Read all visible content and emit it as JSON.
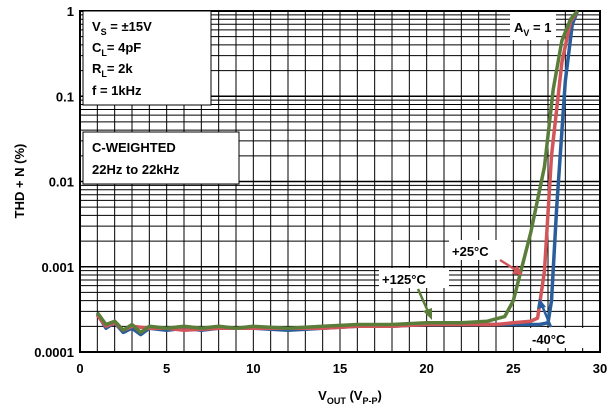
{
  "chart_data": {
    "type": "line",
    "xlabel": {
      "main": "V",
      "sub1": "OUT",
      "mid": " (V",
      "sub2": "P-P",
      "end": ")"
    },
    "ylabel": "THD + N (%)",
    "xlim": [
      0,
      30
    ],
    "ylim": [
      0.0001,
      1
    ],
    "y_scale": "log",
    "x_ticks": [
      {
        "v": 0,
        "label": "0"
      },
      {
        "v": 5,
        "label": "5"
      },
      {
        "v": 10,
        "label": "10"
      },
      {
        "v": 15,
        "label": "15"
      },
      {
        "v": 20,
        "label": "20"
      },
      {
        "v": 25,
        "label": "25"
      },
      {
        "v": 30,
        "label": "30"
      }
    ],
    "y_ticks": [
      {
        "v": 1,
        "label": "1"
      },
      {
        "v": 0.1,
        "label": "0.1"
      },
      {
        "v": 0.01,
        "label": "0.01"
      },
      {
        "v": 0.001,
        "label": "0.001"
      },
      {
        "v": 0.0001,
        "label": "0.0001"
      }
    ],
    "grid": true,
    "conditions": {
      "vs": {
        "main": "V",
        "sub": "S",
        "rest": " = ±15V"
      },
      "cl": {
        "main": "C",
        "sub": "L",
        "rest": "= 4pF"
      },
      "rl": {
        "main": "R",
        "sub": "L",
        "rest": "= 2k"
      },
      "f": "f = 1kHz"
    },
    "weighting": {
      "line1": "C-WEIGHTED",
      "line2": "22Hz to 22kHz"
    },
    "gain": {
      "main": "A",
      "sub": "V",
      "rest": " = 1"
    },
    "series": [
      {
        "name": "-40°C",
        "color": "#2a5d9c",
        "x": [
          1.0,
          1.5,
          2.0,
          2.5,
          3.0,
          3.5,
          4.0,
          5.0,
          6.0,
          7.0,
          8.0,
          10.0,
          12.0,
          14.0,
          16.0,
          18.0,
          20.0,
          22.0,
          24.0,
          25.5,
          26.5,
          27.0,
          27.2,
          27.5,
          28.0,
          28.4,
          28.7
        ],
        "y": [
          0.00028,
          0.00019,
          0.00022,
          0.00017,
          0.00019,
          0.00016,
          0.00019,
          0.00018,
          0.00019,
          0.00018,
          0.00019,
          0.00019,
          0.00018,
          0.00019,
          0.0002,
          0.0002,
          0.00021,
          0.00021,
          0.00021,
          0.00021,
          0.00021,
          0.00022,
          0.0004,
          0.005,
          0.15,
          0.7,
          1.0
        ]
      },
      {
        "name": "+25°C",
        "color": "#d2555a",
        "x": [
          1.0,
          1.5,
          2.0,
          2.5,
          3.0,
          4.0,
          5.0,
          6.0,
          8.0,
          10.0,
          12.0,
          14.0,
          16.0,
          18.0,
          20.0,
          22.0,
          24.0,
          25.0,
          26.0,
          26.4,
          26.8,
          27.2,
          27.8,
          28.3,
          28.7
        ],
        "y": [
          0.00027,
          0.0002,
          0.00022,
          0.00018,
          0.0002,
          0.00019,
          0.00019,
          0.00018,
          0.00019,
          0.00019,
          0.00019,
          0.00019,
          0.0002,
          0.0002,
          0.00021,
          0.00021,
          0.00021,
          0.00022,
          0.00023,
          0.00025,
          0.0009,
          0.02,
          0.25,
          0.75,
          1.0
        ]
      },
      {
        "name": "+125°C",
        "color": "#5a7d3a",
        "x": [
          1.0,
          1.5,
          2.0,
          2.5,
          3.0,
          3.5,
          4.0,
          5.0,
          6.0,
          7.0,
          8.0,
          9.0,
          10.0,
          12.0,
          14.0,
          16.0,
          18.0,
          20.0,
          22.0,
          23.5,
          24.5,
          25.0,
          26.0,
          26.8,
          27.3,
          27.8,
          28.3,
          28.7
        ],
        "y": [
          0.00029,
          0.00021,
          0.00023,
          0.00018,
          0.00021,
          0.00017,
          0.0002,
          0.00019,
          0.0002,
          0.00019,
          0.0002,
          0.00019,
          0.0002,
          0.00019,
          0.0002,
          0.00021,
          0.00021,
          0.00022,
          0.00022,
          0.00023,
          0.00026,
          0.0004,
          0.0025,
          0.015,
          0.12,
          0.45,
          0.8,
          1.0
        ]
      }
    ],
    "annotations": [
      {
        "text": "+125°C",
        "series": "+125°C"
      },
      {
        "text": "+25°C",
        "series": "+25°C"
      },
      {
        "text": "-40°C",
        "series": "-40°C"
      }
    ]
  }
}
